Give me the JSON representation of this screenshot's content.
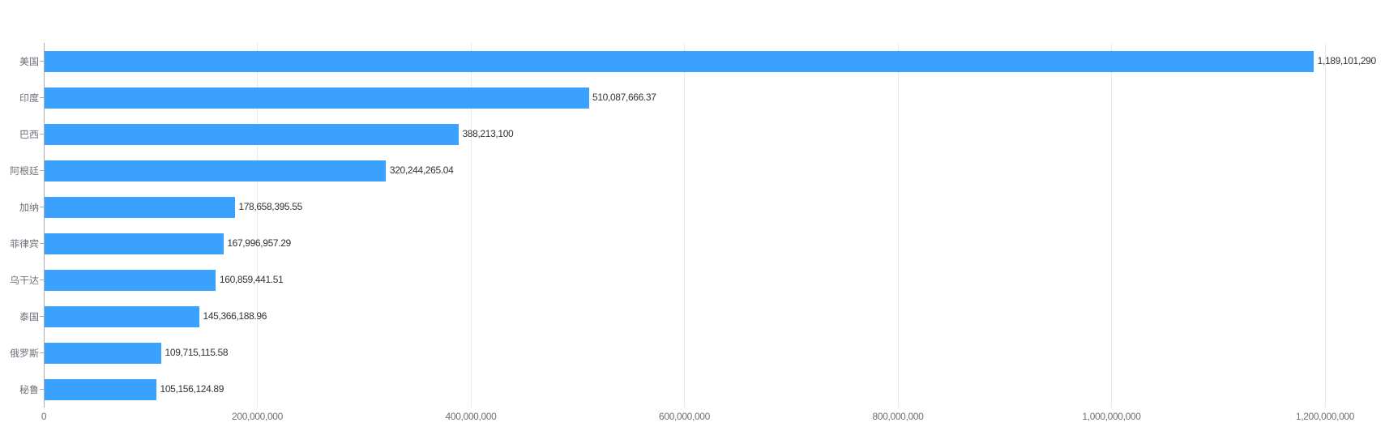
{
  "chart_data": {
    "type": "bar",
    "orientation": "horizontal",
    "title": "",
    "xlabel": "",
    "ylabel": "",
    "categories": [
      "美国",
      "印度",
      "巴西",
      "阿根廷",
      "加纳",
      "菲律宾",
      "乌干达",
      "泰国",
      "俄罗斯",
      "秘鲁"
    ],
    "values": [
      1189101290,
      510087666.37,
      388213100,
      320244265.04,
      178658395.55,
      167996957.29,
      160859441.51,
      145366188.96,
      109715115.58,
      105156124.89
    ],
    "value_labels": [
      "1,189,101,290",
      "510,087,666.37",
      "388,213,100",
      "320,244,265.04",
      "178,658,395.55",
      "167,996,957.29",
      "160,859,441.51",
      "145,366,188.96",
      "109,715,115.58",
      "105,156,124.89"
    ],
    "x_ticks": [
      "0",
      "200,000,000",
      "400,000,000",
      "600,000,000",
      "800,000,000",
      "1,000,000,000",
      "1,200,000,000"
    ],
    "x_tick_values": [
      0,
      200000000,
      400000000,
      600000000,
      800000000,
      1000000000,
      1200000000
    ],
    "xlim": [
      0,
      1200000000
    ],
    "grid": true,
    "legend_position": "none",
    "colors": {
      "bar": "#3aa1ff",
      "axis_line": "#a9acb4",
      "grid_line": "#e6eaf2",
      "axis_label": "#6e7079",
      "value_label": "#333333",
      "background": "#ffffff"
    }
  }
}
